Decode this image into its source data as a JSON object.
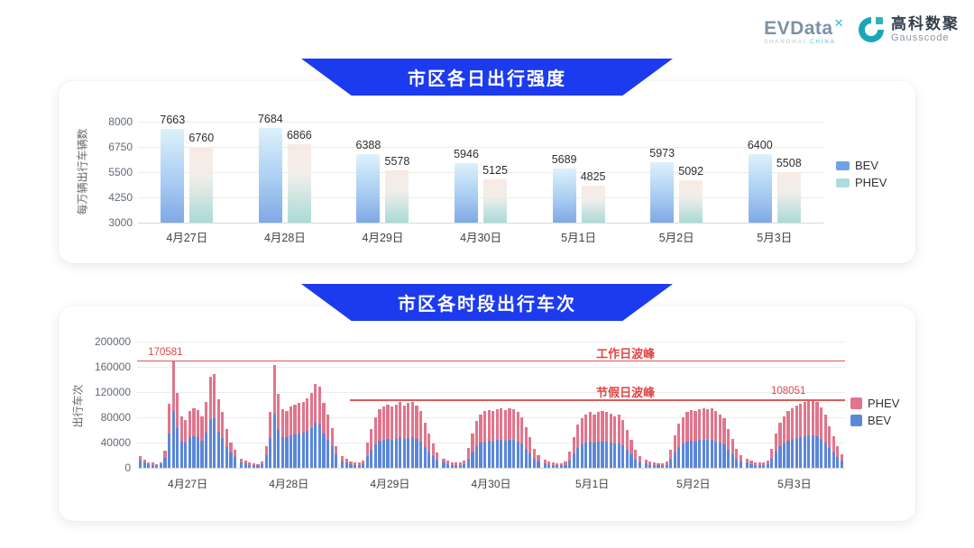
{
  "header": {
    "evdata": {
      "text": "EVData",
      "sup_mark": "✕",
      "subtext_left": "SHANGHAI ",
      "subtext_right": "CHINA"
    },
    "gausscode": {
      "cn": "高科数聚",
      "en": "Gausscode"
    }
  },
  "colors": {
    "banner_blue": "#1c3bee",
    "bev_blue": "#5b87d9",
    "phev_pink": "#e0758c",
    "annotation_red": "#e05a5a",
    "annotation_text_red": "#e04545",
    "legend1_bev": "#6fa3e8",
    "legend1_phev": "#abdce0",
    "gauss_teal": "#1ba5b8"
  },
  "chart_data": [
    {
      "type": "bar",
      "title": "市区各日出行强度",
      "ylabel": "每万辆出行车辆数",
      "ylim": [
        3000,
        8000
      ],
      "yticks": [
        3000,
        4250,
        5500,
        6750,
        8000
      ],
      "grid": true,
      "legend_position": "right",
      "categories": [
        "4月27日",
        "4月28日",
        "4月29日",
        "4月30日",
        "5月1日",
        "5月2日",
        "5月3日"
      ],
      "series": [
        {
          "name": "BEV",
          "values": [
            7663,
            7684,
            6388,
            5946,
            5689,
            5973,
            6400
          ]
        },
        {
          "name": "PHEV",
          "values": [
            6760,
            6866,
            5578,
            5125,
            4825,
            5092,
            5508
          ]
        }
      ]
    },
    {
      "type": "bar",
      "stacked": true,
      "title": "市区各时段出行车次",
      "ylabel": "出行车次",
      "ylim": [
        0,
        200000
      ],
      "yticks": [
        0,
        40000,
        80000,
        120000,
        160000,
        200000
      ],
      "grid": true,
      "legend_position": "right",
      "legend_order": [
        "PHEV",
        "BEV"
      ],
      "categories": [
        "4月27日",
        "4月28日",
        "4月29日",
        "4月30日",
        "5月1日",
        "5月2日",
        "5月3日"
      ],
      "days": [
        {
          "date": "4月27日",
          "bev": [
            11000,
            8000,
            6000,
            5000,
            4000,
            6000,
            16000,
            54000,
            90000,
            63000,
            43000,
            40000,
            48000,
            50000,
            48000,
            43000,
            56000,
            77000,
            79000,
            57000,
            47000,
            33000,
            24000,
            17000
          ],
          "phev": [
            7000,
            5000,
            3000,
            3000,
            2000,
            3000,
            11000,
            47000,
            80581,
            56000,
            38000,
            36000,
            42000,
            45000,
            43000,
            38000,
            49000,
            68000,
            70000,
            51000,
            42000,
            29000,
            16000,
            11000
          ]
        },
        {
          "date": "4月28日",
          "bev": [
            9000,
            7000,
            5000,
            4000,
            4000,
            6000,
            20000,
            47000,
            86000,
            62000,
            49000,
            48000,
            51000,
            53000,
            55000,
            56000,
            58000,
            63000,
            71000,
            68000,
            55000,
            45000,
            34000,
            21000
          ],
          "phev": [
            6000,
            4000,
            3000,
            3000,
            2000,
            4000,
            15000,
            41000,
            77000,
            55000,
            44000,
            42000,
            46000,
            47000,
            48000,
            49000,
            52000,
            55000,
            62000,
            61000,
            48000,
            39000,
            29000,
            14000
          ]
        },
        {
          "date": "4月29日",
          "bev": [
            10000,
            8000,
            6000,
            5000,
            5000,
            7000,
            18000,
            29000,
            37000,
            43000,
            45000,
            46000,
            45000,
            46000,
            48000,
            46000,
            47000,
            48000,
            46000,
            41000,
            33000,
            25000,
            18000,
            12000
          ],
          "phev": [
            8000,
            6000,
            4000,
            4000,
            3000,
            5000,
            22000,
            33000,
            43000,
            50000,
            52000,
            54000,
            52000,
            54000,
            56000,
            53000,
            56000,
            57000,
            53000,
            49000,
            39000,
            30000,
            20000,
            12000
          ]
        },
        {
          "date": "4月30日",
          "bev": [
            8000,
            6000,
            5000,
            4000,
            4000,
            6000,
            15000,
            26000,
            35000,
            40000,
            42000,
            43000,
            42000,
            44000,
            45000,
            43000,
            45000,
            44000,
            41000,
            38000,
            30000,
            23000,
            14000,
            10000
          ],
          "phev": [
            7000,
            5000,
            4000,
            4000,
            4000,
            5000,
            17000,
            29000,
            40000,
            45000,
            48000,
            49000,
            48000,
            49000,
            50000,
            49000,
            50000,
            49000,
            47000,
            42000,
            34000,
            25000,
            16000,
            10000
          ]
        },
        {
          "date": "5月1日",
          "bev": [
            7000,
            5000,
            4000,
            4000,
            4000,
            5000,
            12000,
            23000,
            32000,
            37000,
            40000,
            41000,
            40000,
            41000,
            42000,
            41000,
            40000,
            39000,
            39000,
            36000,
            28000,
            21000,
            13000,
            9000
          ],
          "phev": [
            6000,
            5000,
            4000,
            3000,
            3000,
            5000,
            14000,
            25000,
            36000,
            41000,
            45000,
            47000,
            45000,
            47000,
            48000,
            47000,
            46000,
            43000,
            45000,
            40000,
            32000,
            23000,
            15000,
            9000
          ]
        },
        {
          "date": "5月2日",
          "bev": [
            7000,
            5000,
            4000,
            4000,
            4000,
            5000,
            13000,
            24000,
            33000,
            38000,
            41000,
            43000,
            42000,
            44000,
            45000,
            44000,
            45000,
            42000,
            40000,
            37000,
            29000,
            22000,
            14000,
            10000
          ],
          "phev": [
            6000,
            5000,
            4000,
            3000,
            3000,
            5000,
            15000,
            28000,
            37000,
            42000,
            47000,
            49000,
            48000,
            49000,
            50000,
            49000,
            50000,
            48000,
            45000,
            41000,
            33000,
            24000,
            16000,
            10000
          ]
        },
        {
          "date": "5月3日",
          "bev": [
            8000,
            6000,
            5000,
            4000,
            4000,
            6000,
            14000,
            26000,
            35000,
            39000,
            43000,
            46000,
            47000,
            48000,
            50000,
            51000,
            52000,
            50000,
            46000,
            40000,
            32000,
            24000,
            17000,
            11000
          ],
          "phev": [
            7000,
            5000,
            4000,
            4000,
            4000,
            6000,
            16000,
            29000,
            37000,
            43000,
            47000,
            49000,
            51000,
            53000,
            54000,
            55000,
            56051,
            54000,
            50000,
            44000,
            34000,
            26000,
            18000,
            11000
          ]
        }
      ],
      "annotations": [
        {
          "label": "工作日波峰",
          "value": 170581,
          "value_label": "170581",
          "x_start_pct": 0,
          "label_x_pct": 69,
          "value_label_x_pct": 4
        },
        {
          "label": "节假日波峰",
          "value": 108051,
          "value_label": "108051",
          "x_start_pct": 30,
          "label_x_pct": 69,
          "value_label_x_pct": 92
        }
      ]
    }
  ]
}
